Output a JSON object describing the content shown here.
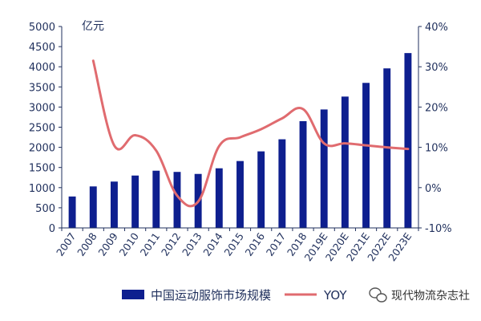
{
  "chart_data": {
    "type": "bar",
    "categories": [
      "2007",
      "2008",
      "2009",
      "2010",
      "2011",
      "2012",
      "2013",
      "2014",
      "2015",
      "2016",
      "2017",
      "2018",
      "2019E",
      "2020E",
      "2021E",
      "2022E",
      "2023E"
    ],
    "series": [
      {
        "name": "中国运动服饰市场规模",
        "type": "bar",
        "axis": "left",
        "values": [
          780,
          1030,
          1150,
          1300,
          1420,
          1390,
          1340,
          1480,
          1660,
          1900,
          2200,
          2650,
          2940,
          3260,
          3600,
          3960,
          4340
        ]
      },
      {
        "name": "YOY",
        "type": "line",
        "axis": "right",
        "values": [
          null,
          31.5,
          10.5,
          13.0,
          9.2,
          -2.0,
          -3.5,
          10.3,
          12.5,
          14.5,
          17.2,
          19.5,
          11.0,
          11.0,
          10.5,
          10.0,
          9.6
        ]
      }
    ],
    "ylabel": "亿元",
    "ylim": [
      0,
      5000
    ],
    "yticks": [
      "0",
      "500",
      "1000",
      "1500",
      "2000",
      "2500",
      "3000",
      "3500",
      "4000",
      "4500",
      "5000"
    ],
    "y2lim": [
      -10,
      40
    ],
    "y2ticks": [
      "-10%",
      "0%",
      "10%",
      "20%",
      "30%",
      "40%"
    ],
    "legend": "bottom",
    "grid": false,
    "colors": {
      "bar": "#0e1f8f",
      "line": "#e06b6f",
      "axis": "#1f2f5c"
    }
  },
  "watermark": {
    "text": "现代物流杂志社"
  }
}
